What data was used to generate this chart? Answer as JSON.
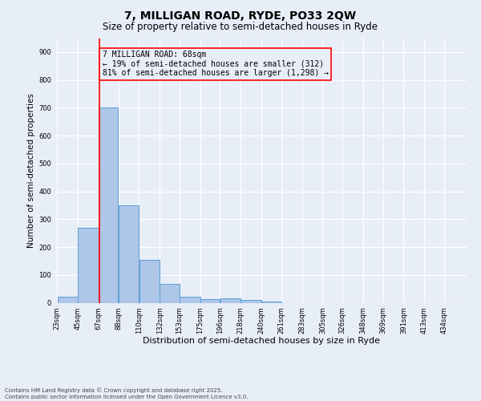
{
  "title": "7, MILLIGAN ROAD, RYDE, PO33 2QW",
  "subtitle": "Size of property relative to semi-detached houses in Ryde",
  "xlabel": "Distribution of semi-detached houses by size in Ryde",
  "ylabel": "Number of semi-detached properties",
  "bar_edges": [
    23,
    45,
    67,
    88,
    110,
    132,
    153,
    175,
    196,
    218,
    240,
    261,
    283,
    305,
    326,
    348,
    369,
    391,
    413,
    434,
    456
  ],
  "bar_heights": [
    22,
    270,
    700,
    350,
    155,
    68,
    22,
    12,
    15,
    10,
    5,
    0,
    0,
    0,
    0,
    0,
    0,
    0,
    0,
    0
  ],
  "bar_color": "#aec6e8",
  "bar_edge_color": "#5a9fd4",
  "vline_x": 68,
  "vline_color": "red",
  "annotation_text": "7 MILLIGAN ROAD: 68sqm\n← 19% of semi-detached houses are smaller (312)\n81% of semi-detached houses are larger (1,298) →",
  "annotation_box_color": "red",
  "ylim": [
    0,
    950
  ],
  "yticks": [
    0,
    100,
    200,
    300,
    400,
    500,
    600,
    700,
    800,
    900
  ],
  "bg_color": "#e8eef8",
  "grid_color": "white",
  "footer_line1": "Contains HM Land Registry data © Crown copyright and database right 2025.",
  "footer_line2": "Contains public sector information licensed under the Open Government Licence v3.0.",
  "title_fontsize": 10,
  "subtitle_fontsize": 8.5,
  "ylabel_fontsize": 7.5,
  "xlabel_fontsize": 8,
  "tick_fontsize": 6,
  "annot_fontsize": 7,
  "footer_fontsize": 5
}
